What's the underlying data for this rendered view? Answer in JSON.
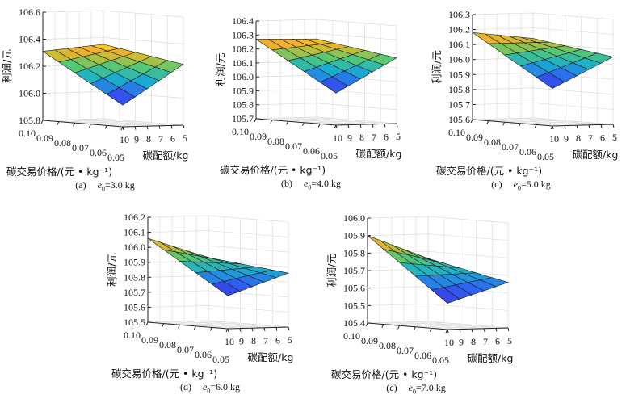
{
  "chart_data": [
    {
      "type": "surface",
      "caption": {
        "label": "(a)",
        "var": "e",
        "sub": "0",
        "value": "=3.0 kg"
      },
      "zlabel": "利润/元",
      "xlabel": "碳交易价格/(元 • kg⁻¹)",
      "ylabel": "碳配额/kg",
      "zlim": [
        105.8,
        106.6
      ],
      "z_ticks": [
        "105.8",
        "106.0",
        "106.2",
        "106.4",
        "106.6"
      ],
      "price_ticks": [
        "0.10",
        "0.09",
        "0.08",
        "0.07",
        "0.06",
        "0.05"
      ],
      "quota_ticks": [
        "10",
        "9",
        "8",
        "7",
        "6",
        "5"
      ],
      "z_at": [
        {
          "price": 0.1,
          "quota": 10,
          "profit": 106.31
        },
        {
          "price": 0.1,
          "quota": 5,
          "profit": 106.35
        },
        {
          "price": 0.05,
          "quota": 5,
          "profit": 106.25
        },
        {
          "price": 0.05,
          "quota": 10,
          "profit": 105.96
        }
      ]
    },
    {
      "type": "surface",
      "caption": {
        "label": "(b)",
        "var": "e",
        "sub": "0",
        "value": "=4.0 kg"
      },
      "zlabel": "利润/元",
      "xlabel": "碳交易价格/(元 • kg⁻¹)",
      "ylabel": "碳配额/kg",
      "zlim": [
        105.7,
        106.4
      ],
      "z_ticks": [
        "105.7",
        "105.8",
        "105.9",
        "106.0",
        "106.1",
        "106.2",
        "106.3",
        "106.4"
      ],
      "price_ticks": [
        "0.10",
        "0.09",
        "0.08",
        "0.07",
        "0.06",
        "0.05"
      ],
      "quota_ticks": [
        "10",
        "9",
        "8",
        "7",
        "6",
        "5"
      ],
      "z_at": [
        {
          "price": 0.1,
          "quota": 10,
          "profit": 106.27
        },
        {
          "price": 0.1,
          "quota": 5,
          "profit": 106.26
        },
        {
          "price": 0.05,
          "quota": 5,
          "profit": 106.17
        },
        {
          "price": 0.05,
          "quota": 10,
          "profit": 105.93
        }
      ]
    },
    {
      "type": "surface",
      "caption": {
        "label": "(c)",
        "var": "e",
        "sub": "0",
        "value": "=5.0 kg"
      },
      "zlabel": "利润/元",
      "xlabel": "碳交易价格/(元 • kg⁻¹)",
      "ylabel": "碳配额/kg",
      "zlim": [
        105.6,
        106.3
      ],
      "z_ticks": [
        "105.6",
        "105.7",
        "105.8",
        "105.9",
        "106.0",
        "106.1",
        "106.2",
        "106.3"
      ],
      "price_ticks": [
        "0.10",
        "0.09",
        "0.08",
        "0.07",
        "0.06",
        "0.05"
      ],
      "quota_ticks": [
        "10",
        "9",
        "8",
        "7",
        "6",
        "5"
      ],
      "z_at": [
        {
          "price": 0.1,
          "quota": 10,
          "profit": 106.18
        },
        {
          "price": 0.1,
          "quota": 5,
          "profit": 106.13
        },
        {
          "price": 0.05,
          "quota": 5,
          "profit": 106.05
        },
        {
          "price": 0.05,
          "quota": 10,
          "profit": 105.85
        }
      ]
    },
    {
      "type": "surface",
      "caption": {
        "label": "(d)",
        "var": "e",
        "sub": "0",
        "value": "=6.0 kg"
      },
      "zlabel": "利润/元",
      "xlabel": "碳交易价格/(元 • kg⁻¹)",
      "ylabel": "碳配额/kg",
      "zlim": [
        105.5,
        106.2
      ],
      "z_ticks": [
        "105.5",
        "105.6",
        "105.7",
        "105.8",
        "105.9",
        "106.0",
        "106.1",
        "106.2"
      ],
      "price_ticks": [
        "0.10",
        "0.09",
        "0.08",
        "0.07",
        "0.06",
        "0.05"
      ],
      "quota_ticks": [
        "10",
        "9",
        "8",
        "7",
        "6",
        "5"
      ],
      "z_at": [
        {
          "price": 0.1,
          "quota": 10,
          "profit": 106.06
        },
        {
          "price": 0.1,
          "quota": 5,
          "profit": 105.92
        },
        {
          "price": 0.05,
          "quota": 5,
          "profit": 105.86
        },
        {
          "price": 0.05,
          "quota": 10,
          "profit": 105.72
        }
      ]
    },
    {
      "type": "surface",
      "caption": {
        "label": "(e)",
        "var": "e",
        "sub": "0",
        "value": "=7.0 kg"
      },
      "zlabel": "利润/元",
      "xlabel": "碳交易价格/(元 • kg⁻¹)",
      "ylabel": "碳配额/kg",
      "zlim": [
        105.4,
        106.0
      ],
      "z_ticks": [
        "105.4",
        "105.5",
        "105.6",
        "105.7",
        "105.8",
        "105.9",
        "106.0"
      ],
      "price_ticks": [
        "0.10",
        "0.09",
        "0.08",
        "0.07",
        "0.06",
        "0.05"
      ],
      "quota_ticks": [
        "10",
        "9",
        "8",
        "7",
        "6",
        "5"
      ],
      "z_at": [
        {
          "price": 0.1,
          "quota": 10,
          "profit": 105.9
        },
        {
          "price": 0.1,
          "quota": 5,
          "profit": 105.76
        },
        {
          "price": 0.05,
          "quota": 5,
          "profit": 105.66
        },
        {
          "price": 0.05,
          "quota": 10,
          "profit": 105.55
        }
      ]
    }
  ]
}
